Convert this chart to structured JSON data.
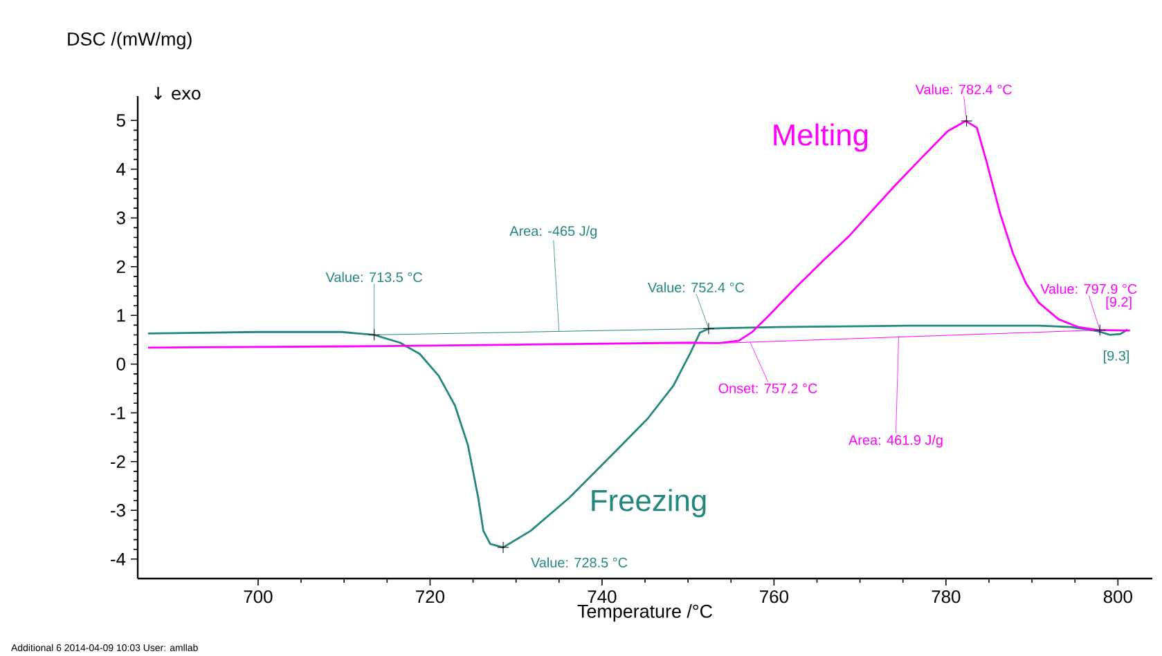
{
  "chart_data": {
    "type": "line",
    "xlabel": "Temperature /°C",
    "ylabel": "DSC /(mW/mg)",
    "xlim": [
      686,
      804
    ],
    "ylim": [
      -4.4,
      5.5
    ],
    "xticks": [
      700,
      720,
      740,
      760,
      780,
      800
    ],
    "yticks": [
      -4,
      -3,
      -2,
      -1,
      0,
      1,
      2,
      3,
      4,
      5
    ],
    "series": [
      {
        "name": "Freezing",
        "color": "#23877c",
        "x": [
          687.2,
          700,
          709.7,
          713.5,
          716.5,
          718.8,
          721,
          722.9,
          724.4,
          725.6,
          726.2,
          727,
          728.5,
          731.7,
          736.2,
          741.5,
          745.3,
          748.3,
          750.3,
          751.4,
          752.5,
          754.4,
          760.5,
          775.6,
          790.8,
          794.6,
          797.6,
          799.1,
          800.3,
          801.1
        ],
        "values": [
          0.63,
          0.66,
          0.66,
          0.6,
          0.44,
          0.21,
          -0.24,
          -0.85,
          -1.66,
          -2.74,
          -3.42,
          -3.69,
          -3.76,
          -3.42,
          -2.74,
          -1.8,
          -1.12,
          -0.44,
          0.24,
          0.65,
          0.73,
          0.74,
          0.76,
          0.79,
          0.79,
          0.76,
          0.68,
          0.6,
          0.62,
          0.71
        ]
      },
      {
        "name": "Melting",
        "color": "#ff00ff",
        "x": [
          687.2,
          715,
          730.2,
          750.6,
          753.6,
          755.9,
          757.4,
          759.3,
          762.7,
          765.8,
          768.8,
          771.1,
          774.1,
          777.2,
          780.2,
          782.3,
          783.6,
          784.7,
          786.3,
          787.8,
          789.3,
          790.8,
          793.1,
          795.4,
          797.6,
          801.4
        ],
        "values": [
          0.34,
          0.37,
          0.4,
          0.44,
          0.43,
          0.48,
          0.65,
          0.98,
          1.6,
          2.14,
          2.64,
          3.09,
          3.67,
          4.24,
          4.78,
          4.99,
          4.85,
          4.17,
          3.09,
          2.27,
          1.66,
          1.26,
          0.92,
          0.76,
          0.7,
          0.69
        ]
      },
      {
        "color": "#23877c",
        "x": [
          713.5,
          752.4
        ],
        "values": [
          0.6,
          0.73
        ]
      },
      {
        "color": "#ff00ff",
        "x": [
          753.9,
          797.9
        ],
        "values": [
          0.43,
          0.7
        ]
      }
    ],
    "annotations": [
      {
        "text": "Value: 713.5 °C",
        "x": 713.5,
        "y": 0.6
      },
      {
        "text": "Area: -465 J/g",
        "x": 735,
        "y": 0.67
      },
      {
        "text": "Value: 752.4 °C",
        "x": 752.4,
        "y": 0.73
      },
      {
        "text": "Value: 728.5 °C",
        "x": 728.5,
        "y": -3.76
      },
      {
        "text": "Value: 782.4 °C",
        "x": 782.4,
        "y": 4.99
      },
      {
        "text": "Onset: 757.2 °C",
        "x": 757.2,
        "y": 0.46
      },
      {
        "text": "Area: 461.9 J/g",
        "x": 774.5,
        "y": 0.57
      },
      {
        "text": "Value: 797.9 °C",
        "x": 797.9,
        "y": 0.7
      },
      {
        "text": "[9.2]",
        "x": 801.4,
        "y": 0.69
      },
      {
        "text": "[9.3]",
        "x": 801.1,
        "y": 0.71
      },
      "↓ exo",
      "Additional 6   2014-04-09 10:03   User: amllab"
    ]
  }
}
